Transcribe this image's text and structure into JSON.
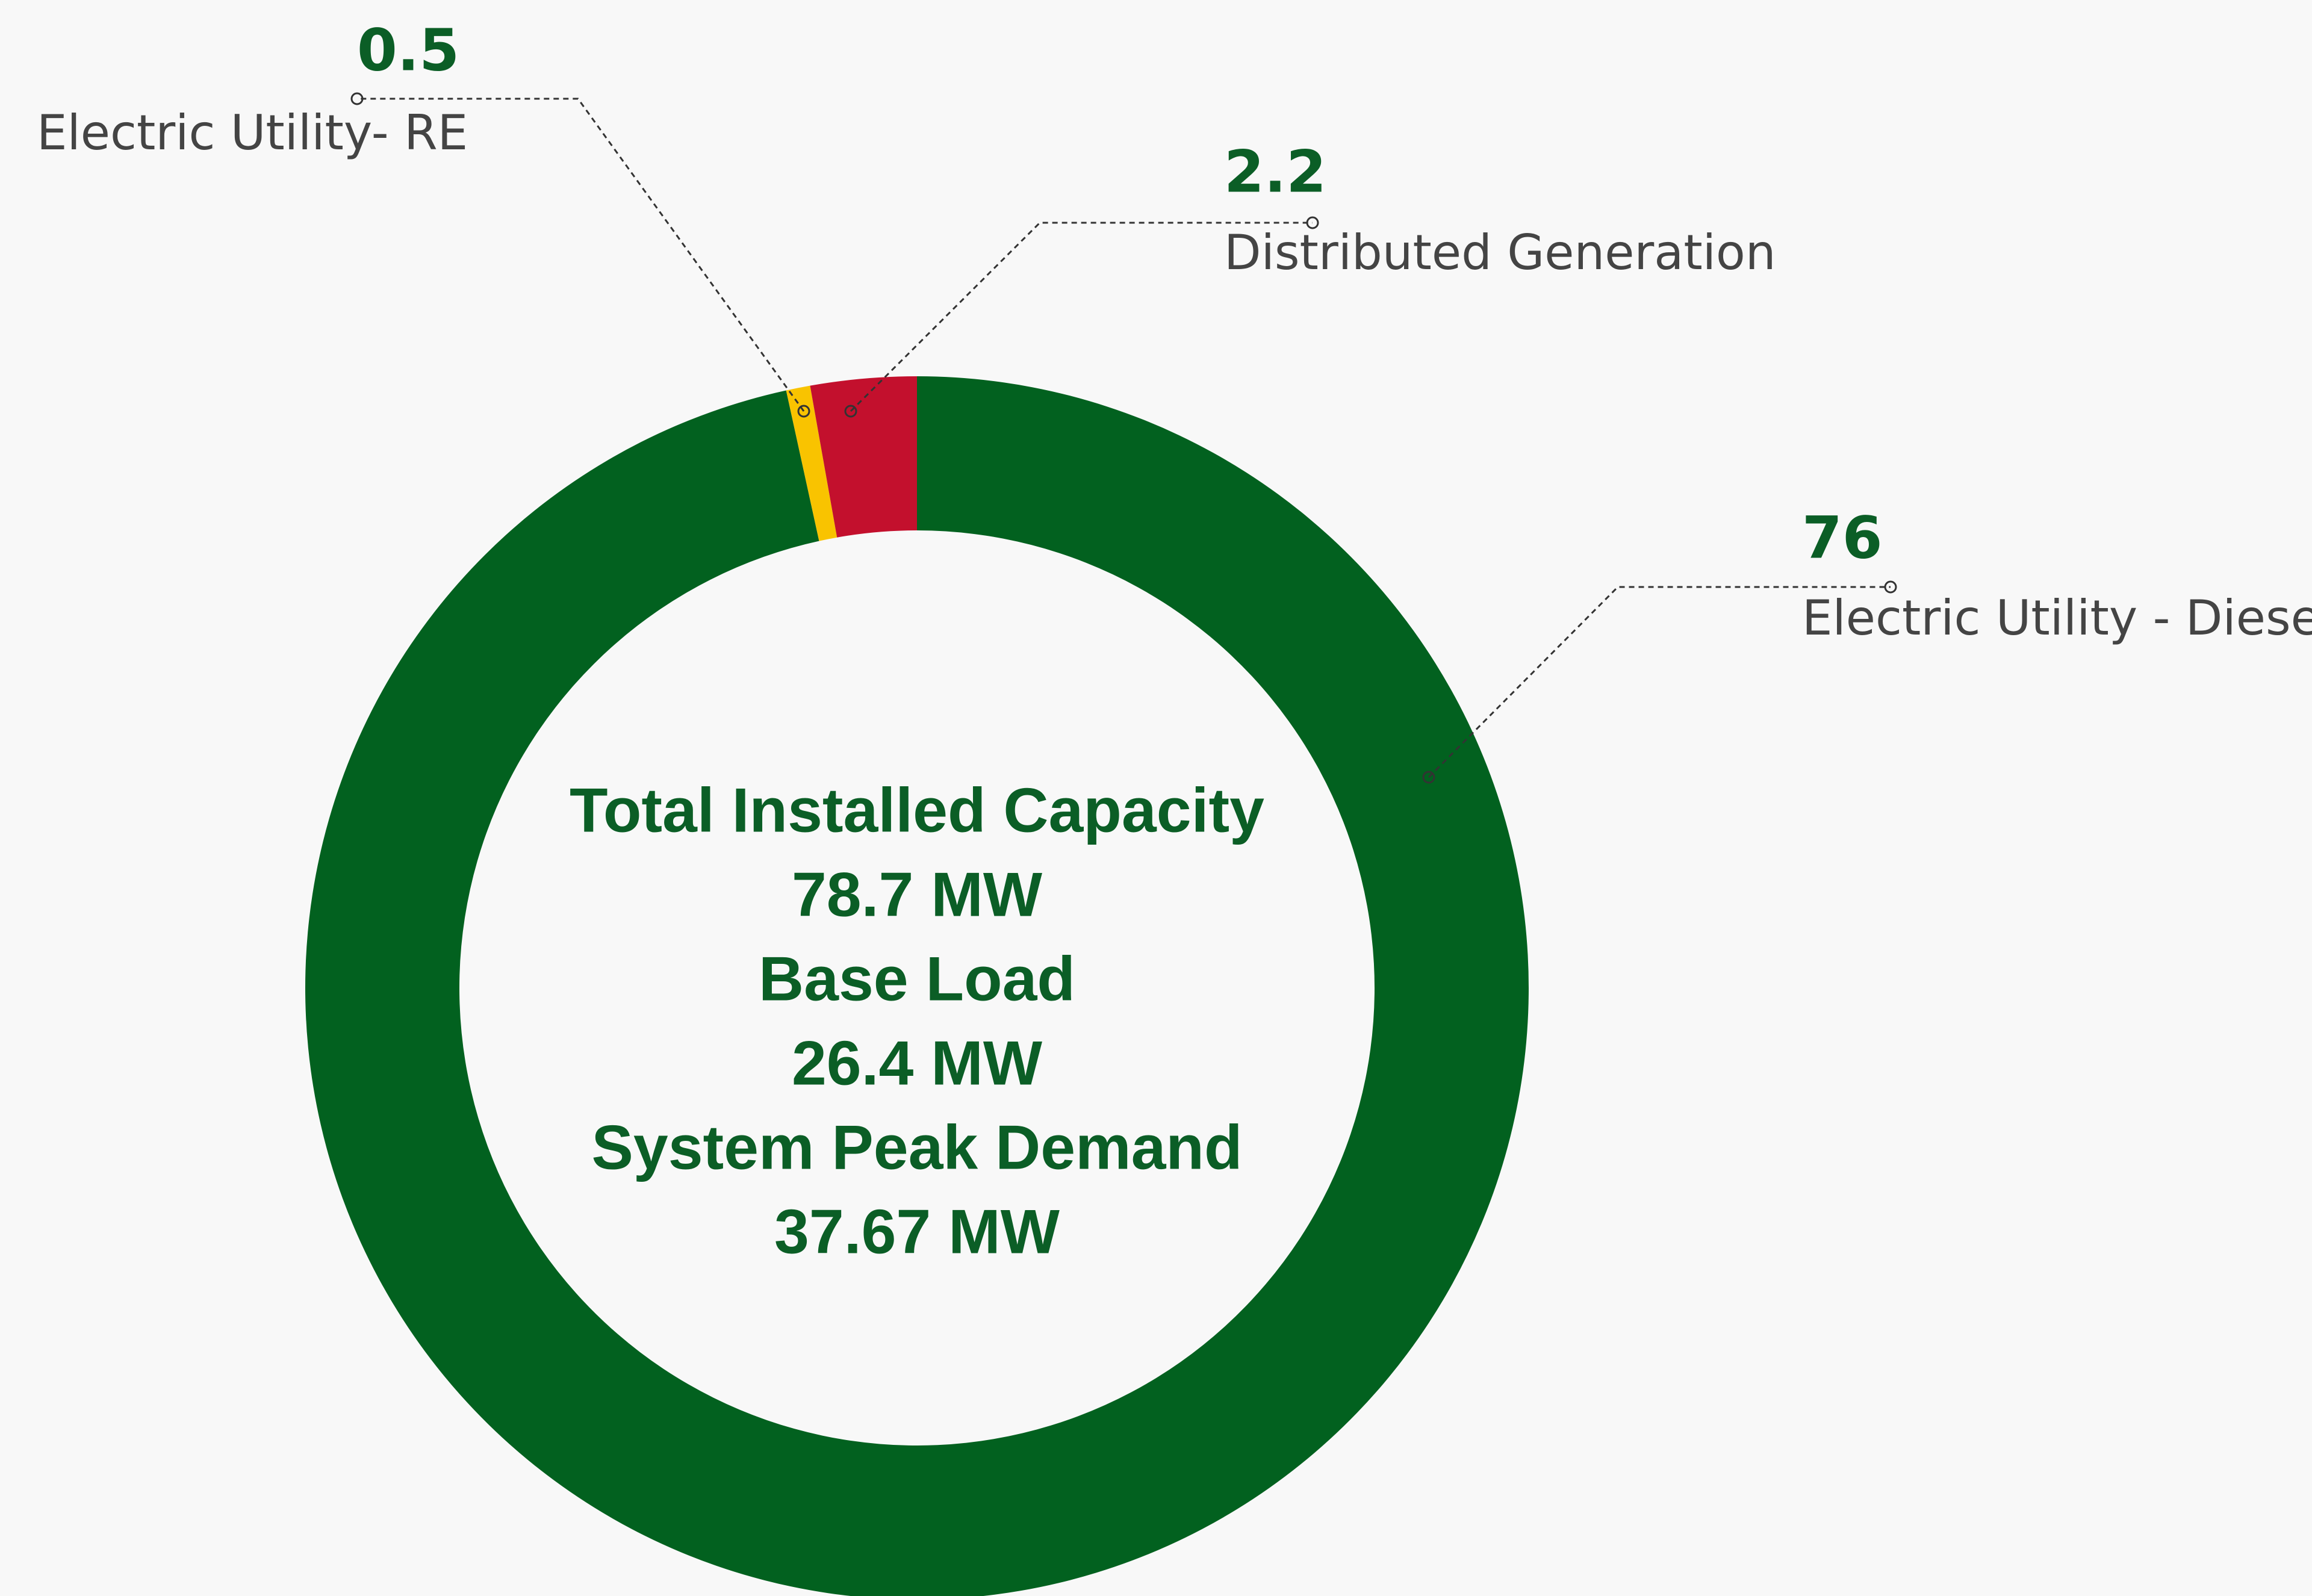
{
  "chart_data": {
    "type": "donut",
    "categories": [
      "Electric Utility - Diesel",
      "Electric Utility- RE",
      "Distributed Generation"
    ],
    "values": [
      76,
      0.5,
      2.2
    ],
    "colors": [
      "#02611f",
      "#f9c300",
      "#c3102d"
    ],
    "center_text": [
      "Total Installed Capacity",
      "78.7 MW",
      "Base Load",
      "26.4 MW",
      "System Peak Demand",
      "37.67 MW"
    ]
  }
}
